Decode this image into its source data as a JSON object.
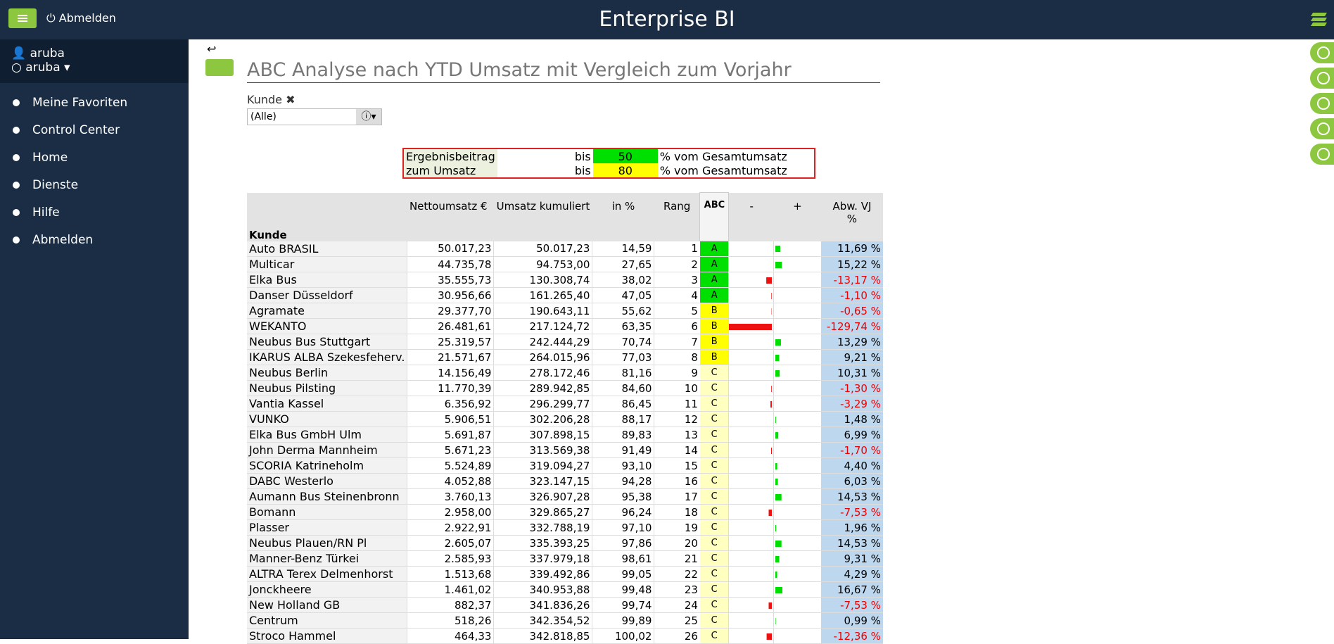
{
  "header": {
    "menu_button": "Abmelden",
    "app_title": "Enterprise BI"
  },
  "sidebar": {
    "user": "aruba",
    "role": "aruba",
    "menu": [
      "Meine Favoriten",
      "Control Center",
      "Home",
      "Dienste",
      "Hilfe",
      "Abmelden"
    ]
  },
  "report": {
    "title": "ABC Analyse  nach YTD Umsatz  mit Vergleich zum Vorjahr",
    "filter": {
      "label": "Kunde",
      "value": "(Alle)"
    },
    "thresholds": [
      {
        "label": "Ergebnisbeitrag",
        "bis": "bis",
        "value": 50,
        "text": "% vom Gesamtumsatz",
        "color": "#00e000"
      },
      {
        "label": "zum Umsatz",
        "bis": "bis",
        "value": 80,
        "text": "% vom Gesamtumsatz",
        "color": "#ffff00"
      }
    ]
  },
  "table": {
    "columns": [
      "Nettoumsatz €",
      "Umsatz kumuliert",
      "in %",
      "Rang",
      "ABC",
      "-",
      "+",
      "Abw. VJ\n%"
    ],
    "row_header": "Kunde",
    "abc_colors": {
      "A": "#00e000",
      "B": "#ffff00",
      "C": "#ffffc0"
    },
    "bar_colors": {
      "positive": "#00dd00",
      "negative": "#ee1111"
    },
    "rows": [
      {
        "kunde": "Auto BRASIL",
        "netto": "50.017,23",
        "kumuliert": "50.017,23",
        "prozent": "14,59",
        "rang": 1,
        "abc": "A",
        "abw": {
          "value": 11.69,
          "label": "11,69 %"
        }
      },
      {
        "kunde": "Multicar",
        "netto": "44.735,78",
        "kumuliert": "94.753,00",
        "prozent": "27,65",
        "rang": 2,
        "abc": "A",
        "abw": {
          "value": 15.22,
          "label": "15,22 %"
        }
      },
      {
        "kunde": "Elka Bus",
        "netto": "35.555,73",
        "kumuliert": "130.308,74",
        "prozent": "38,02",
        "rang": 3,
        "abc": "A",
        "abw": {
          "value": -13.17,
          "label": "-13,17 %"
        }
      },
      {
        "kunde": "Danser Düsseldorf",
        "netto": "30.956,66",
        "kumuliert": "161.265,40",
        "prozent": "47,05",
        "rang": 4,
        "abc": "A",
        "abw": {
          "value": -1.1,
          "label": "-1,10 %"
        }
      },
      {
        "kunde": "Agramate",
        "netto": "29.377,70",
        "kumuliert": "190.643,11",
        "prozent": "55,62",
        "rang": 5,
        "abc": "B",
        "abw": {
          "value": -0.65,
          "label": "-0,65 %"
        }
      },
      {
        "kunde": "WEKANTO",
        "netto": "26.481,61",
        "kumuliert": "217.124,72",
        "prozent": "63,35",
        "rang": 6,
        "abc": "B",
        "abw": {
          "value": -129.74,
          "label": "-129,74 %"
        }
      },
      {
        "kunde": "Neubus Bus Stuttgart",
        "netto": "25.319,57",
        "kumuliert": "242.444,29",
        "prozent": "70,74",
        "rang": 7,
        "abc": "B",
        "abw": {
          "value": 13.29,
          "label": "13,29 %"
        }
      },
      {
        "kunde": "IKARUS ALBA Szekesfeherv.",
        "netto": "21.571,67",
        "kumuliert": "264.015,96",
        "prozent": "77,03",
        "rang": 8,
        "abc": "B",
        "abw": {
          "value": 9.21,
          "label": "9,21 %"
        }
      },
      {
        "kunde": "Neubus Berlin",
        "netto": "14.156,49",
        "kumuliert": "278.172,46",
        "prozent": "81,16",
        "rang": 9,
        "abc": "C",
        "abw": {
          "value": 10.31,
          "label": "10,31 %"
        }
      },
      {
        "kunde": "Neubus Pilsting",
        "netto": "11.770,39",
        "kumuliert": "289.942,85",
        "prozent": "84,60",
        "rang": 10,
        "abc": "C",
        "abw": {
          "value": -1.3,
          "label": "-1,30 %"
        }
      },
      {
        "kunde": "Vantia Kassel",
        "netto": "6.356,92",
        "kumuliert": "296.299,77",
        "prozent": "86,45",
        "rang": 11,
        "abc": "C",
        "abw": {
          "value": -3.29,
          "label": "-3,29 %"
        }
      },
      {
        "kunde": "VUNKO",
        "netto": "5.906,51",
        "kumuliert": "302.206,28",
        "prozent": "88,17",
        "rang": 12,
        "abc": "C",
        "abw": {
          "value": 1.48,
          "label": "1,48 %"
        }
      },
      {
        "kunde": "Elka Bus GmbH Ulm",
        "netto": "5.691,87",
        "kumuliert": "307.898,15",
        "prozent": "89,83",
        "rang": 13,
        "abc": "C",
        "abw": {
          "value": 6.99,
          "label": "6,99 %"
        }
      },
      {
        "kunde": "John Derma Mannheim",
        "netto": "5.671,23",
        "kumuliert": "313.569,38",
        "prozent": "91,49",
        "rang": 14,
        "abc": "C",
        "abw": {
          "value": -1.7,
          "label": "-1,70 %"
        }
      },
      {
        "kunde": "SCORIA Katrineholm",
        "netto": "5.524,89",
        "kumuliert": "319.094,27",
        "prozent": "93,10",
        "rang": 15,
        "abc": "C",
        "abw": {
          "value": 4.4,
          "label": "4,40 %"
        }
      },
      {
        "kunde": "DABC Westerlo",
        "netto": "4.052,88",
        "kumuliert": "323.147,15",
        "prozent": "94,28",
        "rang": 16,
        "abc": "C",
        "abw": {
          "value": 6.03,
          "label": "6,03 %"
        }
      },
      {
        "kunde": "Aumann Bus Steinenbronn",
        "netto": "3.760,13",
        "kumuliert": "326.907,28",
        "prozent": "95,38",
        "rang": 17,
        "abc": "C",
        "abw": {
          "value": 14.53,
          "label": "14,53 %"
        }
      },
      {
        "kunde": "Bomann",
        "netto": "2.958,00",
        "kumuliert": "329.865,27",
        "prozent": "96,24",
        "rang": 18,
        "abc": "C",
        "abw": {
          "value": -7.53,
          "label": "-7,53 %"
        }
      },
      {
        "kunde": "Plasser",
        "netto": "2.922,91",
        "kumuliert": "332.788,19",
        "prozent": "97,10",
        "rang": 19,
        "abc": "C",
        "abw": {
          "value": 1.96,
          "label": "1,96 %"
        }
      },
      {
        "kunde": "Neubus Plauen/RN Pl",
        "netto": "2.605,07",
        "kumuliert": "335.393,25",
        "prozent": "97,86",
        "rang": 20,
        "abc": "C",
        "abw": {
          "value": 14.53,
          "label": "14,53 %"
        }
      },
      {
        "kunde": "Manner-Benz Türkei",
        "netto": "2.585,93",
        "kumuliert": "337.979,18",
        "prozent": "98,61",
        "rang": 21,
        "abc": "C",
        "abw": {
          "value": 9.31,
          "label": "9,31 %"
        }
      },
      {
        "kunde": "ALTRA Terex Delmenhorst",
        "netto": "1.513,68",
        "kumuliert": "339.492,86",
        "prozent": "99,05",
        "rang": 22,
        "abc": "C",
        "abw": {
          "value": 4.29,
          "label": "4,29 %"
        }
      },
      {
        "kunde": "Jonckheere",
        "netto": "1.461,02",
        "kumuliert": "340.953,88",
        "prozent": "99,48",
        "rang": 23,
        "abc": "C",
        "abw": {
          "value": 16.67,
          "label": "16,67 %"
        }
      },
      {
        "kunde": "New Holland GB",
        "netto": "882,37",
        "kumuliert": "341.836,26",
        "prozent": "99,74",
        "rang": 24,
        "abc": "C",
        "abw": {
          "value": -7.53,
          "label": "-7,53 %"
        }
      },
      {
        "kunde": "Centrum",
        "netto": "518,26",
        "kumuliert": "342.354,52",
        "prozent": "99,89",
        "rang": 25,
        "abc": "C",
        "abw": {
          "value": 0.99,
          "label": "0,99 %"
        }
      },
      {
        "kunde": "Stroco Hammel",
        "netto": "464,33",
        "kumuliert": "342.818,85",
        "prozent": "100,02",
        "rang": 26,
        "abc": "C",
        "abw": {
          "value": -12.36,
          "label": "-12,36 %"
        }
      }
    ]
  }
}
